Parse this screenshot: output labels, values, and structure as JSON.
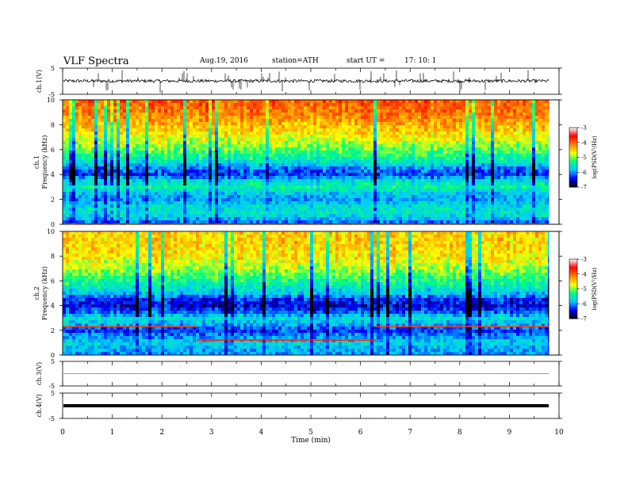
{
  "header": {
    "title": "VLF  Spectra",
    "date": "Aug.19, 2016",
    "station": "station=ATH",
    "start_label": "start  UT  =",
    "start_time": "17: 10: 1"
  },
  "chart_data": [
    {
      "type": "line",
      "name": "ch1_waveform",
      "ylabel": "ch.1(V)",
      "yticks": [
        "5",
        "-5"
      ],
      "ylim": [
        -5,
        5
      ],
      "xlim": [
        0,
        10
      ],
      "data_end_min": 9.8,
      "baseline_V": 0.1,
      "noise_amplitude_V": 0.6,
      "spike_amplitude_V": 4.5,
      "color": "#000000"
    },
    {
      "type": "heatmap",
      "name": "ch1_spectrogram",
      "ylabel": "ch.1\nFrequency (kHz)",
      "ylabel_lines": [
        "ch.1",
        "Frequency (kHz)"
      ],
      "yticks": [
        "0",
        "2",
        "4",
        "6",
        "8",
        "10"
      ],
      "ylim": [
        0,
        10
      ],
      "xlim": [
        0,
        10
      ],
      "data_end_min": 9.8,
      "colorbar": {
        "label": "log(PSD(V²/Hz)",
        "ticks": [
          "-3",
          "-4",
          "-5",
          "-6",
          "-7"
        ],
        "range": [
          -7,
          -3
        ],
        "colors": [
          "#000000",
          "#0000ff",
          "#00c8ff",
          "#00ff80",
          "#ffff00",
          "#ff8000",
          "#ff0000",
          "#ffffff"
        ]
      },
      "profile_log_psd": [
        {
          "f_khz": 0.0,
          "v": -6.3
        },
        {
          "f_khz": 0.5,
          "v": -5.8
        },
        {
          "f_khz": 1.0,
          "v": -5.6
        },
        {
          "f_khz": 1.5,
          "v": -5.7
        },
        {
          "f_khz": 2.0,
          "v": -6.0
        },
        {
          "f_khz": 2.5,
          "v": -5.8
        },
        {
          "f_khz": 3.0,
          "v": -5.4
        },
        {
          "f_khz": 3.5,
          "v": -5.7
        },
        {
          "f_khz": 4.0,
          "v": -6.3
        },
        {
          "f_khz": 4.5,
          "v": -6.1
        },
        {
          "f_khz": 5.0,
          "v": -5.6
        },
        {
          "f_khz": 6.0,
          "v": -5.1
        },
        {
          "f_khz": 7.0,
          "v": -4.7
        },
        {
          "f_khz": 8.0,
          "v": -4.4
        },
        {
          "f_khz": 9.0,
          "v": -4.1
        },
        {
          "f_khz": 10.0,
          "v": -4.0
        }
      ]
    },
    {
      "type": "heatmap",
      "name": "ch2_spectrogram",
      "ylabel": "ch.2\nFrequency (kHz)",
      "ylabel_lines": [
        "ch.2",
        "Frequency (kHz)"
      ],
      "yticks": [
        "0",
        "2",
        "4",
        "6",
        "8",
        "10"
      ],
      "ylim": [
        0,
        10
      ],
      "xlim": [
        0,
        10
      ],
      "data_end_min": 9.8,
      "colorbar": {
        "label": "log(PSD(V²/Hz)",
        "ticks": [
          "-3",
          "-4",
          "-5",
          "-6",
          "-7"
        ],
        "range": [
          -7,
          -3
        ],
        "colors": [
          "#000000",
          "#0000ff",
          "#00c8ff",
          "#00ff80",
          "#ffff00",
          "#ff8000",
          "#ff0000",
          "#ffffff"
        ]
      },
      "profile_log_psd": [
        {
          "f_khz": 0.0,
          "v": -6.0
        },
        {
          "f_khz": 0.5,
          "v": -5.9
        },
        {
          "f_khz": 1.0,
          "v": -5.7
        },
        {
          "f_khz": 1.5,
          "v": -6.0
        },
        {
          "f_khz": 2.0,
          "v": -6.3
        },
        {
          "f_khz": 2.5,
          "v": -5.9
        },
        {
          "f_khz": 3.0,
          "v": -5.6
        },
        {
          "f_khz": 3.5,
          "v": -6.2
        },
        {
          "f_khz": 4.0,
          "v": -6.5
        },
        {
          "f_khz": 4.5,
          "v": -6.3
        },
        {
          "f_khz": 5.0,
          "v": -5.8
        },
        {
          "f_khz": 6.0,
          "v": -5.3
        },
        {
          "f_khz": 7.0,
          "v": -4.9
        },
        {
          "f_khz": 8.0,
          "v": -4.6
        },
        {
          "f_khz": 9.0,
          "v": -4.5
        },
        {
          "f_khz": 10.0,
          "v": -4.5
        }
      ],
      "tonal_lines": [
        {
          "f_khz": 2.3,
          "t_start": 0.0,
          "t_end": 2.7,
          "color": "#ff4000"
        },
        {
          "f_khz": 1.2,
          "t_start": 2.7,
          "t_end": 6.3,
          "color": "#ff2000"
        },
        {
          "f_khz": 2.3,
          "t_start": 6.3,
          "t_end": 9.8,
          "color": "#ff4000"
        }
      ]
    },
    {
      "type": "line",
      "name": "ch3_waveform",
      "ylabel": "ch.3(V)",
      "yticks": [
        "5",
        "-5"
      ],
      "ylim": [
        -5,
        5
      ],
      "xlim": [
        0,
        10
      ],
      "data_end_min": 9.8,
      "baseline_V": 0.0,
      "noise_amplitude_V": 0.0,
      "color": "#808080"
    },
    {
      "type": "line",
      "name": "ch4_waveform",
      "ylabel": "ch.4(V)",
      "yticks": [
        "5",
        "-5"
      ],
      "ylim": [
        -5,
        5
      ],
      "xlim": [
        0,
        10
      ],
      "data_end_min": 9.8,
      "baseline_V": 0.0,
      "noise_amplitude_V": 0.0,
      "color": "#000000"
    }
  ],
  "x_axis": {
    "xlabel": "Time  (min)",
    "ticks": [
      "0",
      "1",
      "2",
      "3",
      "4",
      "5",
      "6",
      "7",
      "8",
      "9",
      "10"
    ],
    "xlim": [
      0,
      10
    ]
  }
}
